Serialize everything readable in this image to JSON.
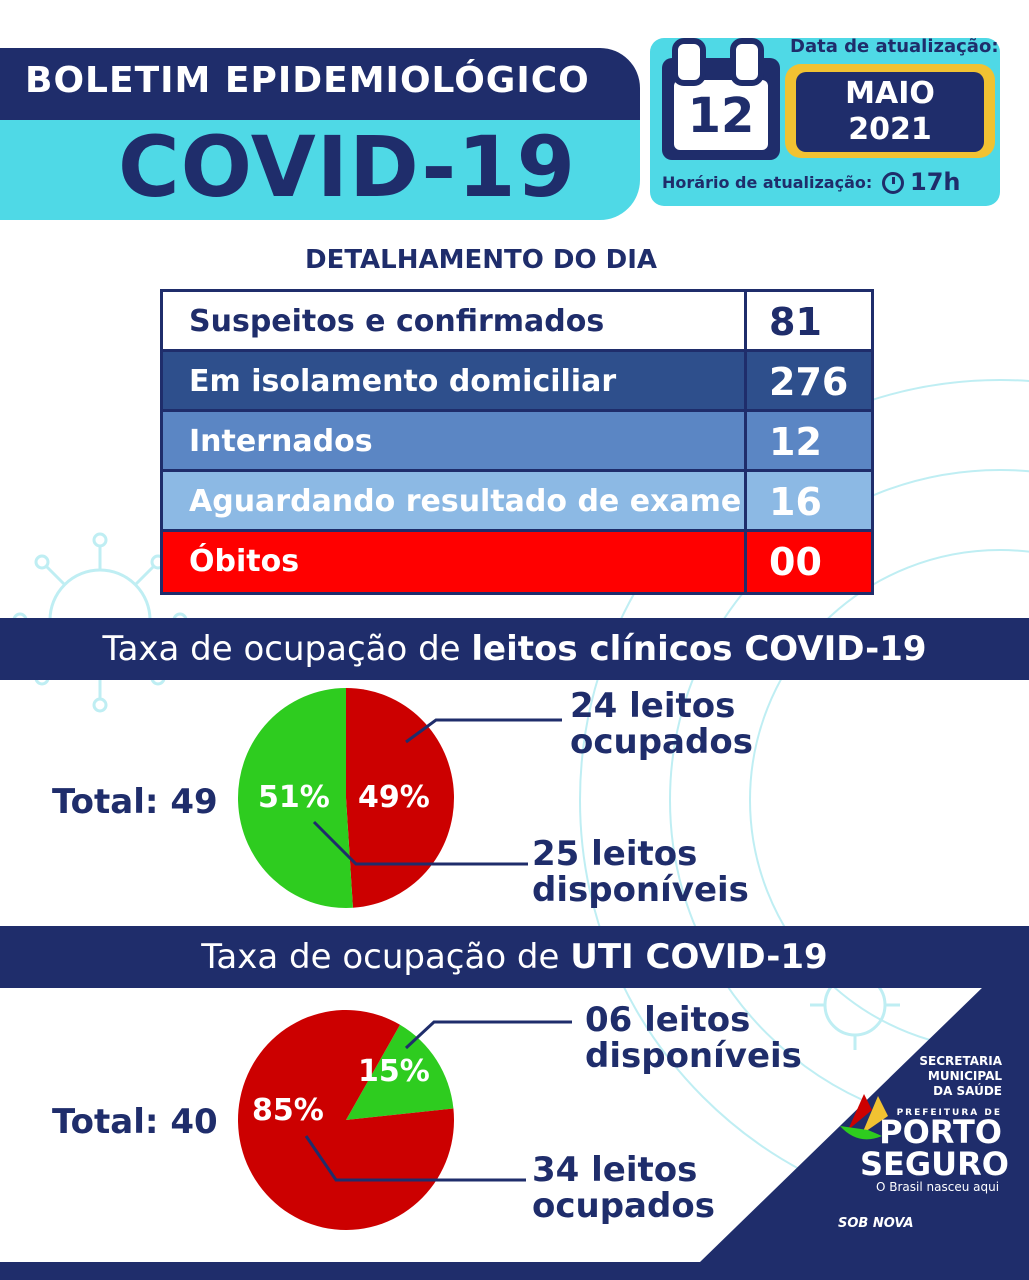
{
  "header": {
    "title": "BOLETIM EPIDEMIOLÓGICO",
    "subtitle": "COVID-19"
  },
  "update": {
    "date_label": "Data de atualização:",
    "day": "12",
    "month": "MAIO",
    "year": "2021",
    "time_label": "Horário de atualização:",
    "time": "17h"
  },
  "detail": {
    "title": "DETALHAMENTO DO DIA",
    "rows": [
      {
        "label": "Suspeitos e confirmados",
        "value": "81",
        "bg": "#ffffff",
        "fg": "#1f2d6b"
      },
      {
        "label": "Em isolamento domiciliar",
        "value": "276",
        "bg": "#2e4f8c",
        "fg": "#ffffff"
      },
      {
        "label": "Internados",
        "value": "12",
        "bg": "#5b86c4",
        "fg": "#ffffff"
      },
      {
        "label": "Aguardando resultado de exame",
        "value": "16",
        "bg": "#8cb9e4",
        "fg": "#ffffff"
      },
      {
        "label": "Óbitos",
        "value": "00",
        "bg": "#ff0000",
        "fg": "#ffffff"
      }
    ]
  },
  "clinical": {
    "band_prefix": "Taxa de ocupação de ",
    "band_bold": "leitos clínicos COVID-19",
    "total": "Total: 49",
    "occupied_pct": "49%",
    "available_pct": "51%",
    "occupied_label_1": "24 leitos",
    "occupied_label_2": "ocupados",
    "available_label_1": "25 leitos",
    "available_label_2": "disponíveis"
  },
  "icu": {
    "band_prefix": "Taxa de ocupação de ",
    "band_bold": "UTI COVID-19",
    "total": "Total: 40",
    "occupied_pct": "85%",
    "available_pct": "15%",
    "available_label_1": "06 leitos",
    "available_label_2": "disponíveis",
    "occupied_label_1": "34 leitos",
    "occupied_label_2": "ocupados"
  },
  "chart_data": [
    {
      "type": "pie",
      "title": "Taxa de ocupação de leitos clínicos COVID-19",
      "categories": [
        "ocupados",
        "disponíveis"
      ],
      "values": [
        24,
        25
      ],
      "percent": [
        49,
        51
      ],
      "colors": [
        "#cc0000",
        "#2ecc1f"
      ]
    },
    {
      "type": "pie",
      "title": "Taxa de ocupação de UTI COVID-19",
      "categories": [
        "disponíveis",
        "ocupados"
      ],
      "values": [
        6,
        34
      ],
      "percent": [
        15,
        85
      ],
      "colors": [
        "#2ecc1f",
        "#cc0000"
      ]
    }
  ],
  "logo": {
    "line1": "SECRETARIA",
    "line2": "MUNICIPAL",
    "line3": "DA SAÚDE",
    "prefeitura": "PREFEITURA DE",
    "city_1": "PORTO",
    "city_2": "SEGURO",
    "slogan": "O Brasil nasceu aqui",
    "tag": "SOB NOVA"
  },
  "colors": {
    "navy": "#1f2d6b",
    "cyan": "#4fd9e6",
    "gold": "#f1c232",
    "red": "#cc0000",
    "green": "#2ecc1f"
  }
}
